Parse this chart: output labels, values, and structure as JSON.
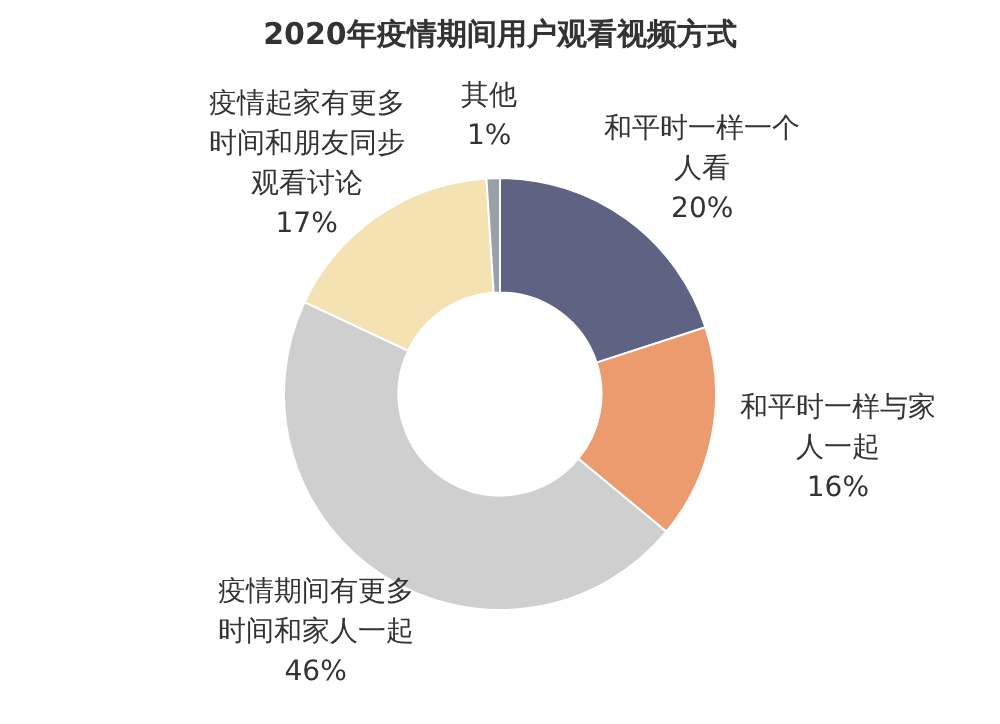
{
  "chart_data": {
    "type": "donut",
    "title": "2020年疫情期间用户观看视频方式",
    "categories": [
      "和平时一样一个人看",
      "和平时一样与家人一起",
      "疫情期间有更多时间和家人一起",
      "疫情起家有更多时间和朋友同步观看讨论",
      "其他"
    ],
    "values": [
      20,
      16,
      46,
      17,
      1
    ],
    "colors": [
      "#5e6283",
      "#eb9b6e",
      "#cfcfcf",
      "#f4e2b3",
      "#9aa0a8"
    ],
    "value_labels": [
      "20%",
      "16%",
      "46%",
      "17%",
      "1%"
    ]
  }
}
